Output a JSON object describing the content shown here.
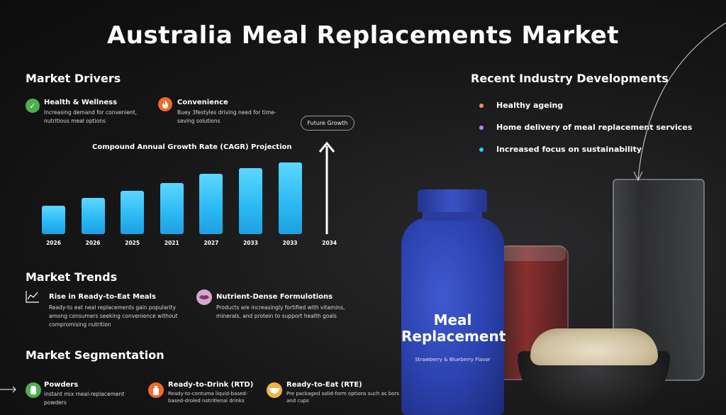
{
  "title": "Australia Meal Replacements Market",
  "drivers": {
    "heading": "Market Drivers",
    "items": [
      {
        "title": "Health & Wellness",
        "desc": "Increasing demand for convenient, nutritious meal options",
        "icon": "checkmark-icon",
        "color": "#4caf50"
      },
      {
        "title": "Convenience",
        "desc": "Buey 3festyles driving need for time-saving solutions",
        "icon": "flame-icon",
        "color": "#f06a2a"
      }
    ]
  },
  "chart": {
    "pill": "Future Growth",
    "title": "Compound Annual Growth Rate (CAGR) Projection"
  },
  "chart_data": {
    "type": "bar",
    "title": "Compound Annual Growth Rate (CAGR) Projection",
    "categories": [
      "2026",
      "2026",
      "2025",
      "2021",
      "2027",
      "2033",
      "2033",
      "2034"
    ],
    "values": [
      40,
      51,
      61,
      72,
      85,
      93,
      101,
      null
    ],
    "ylim": [
      0,
      110
    ],
    "annotation": "Future Growth"
  },
  "developments": {
    "heading": "Recent Industry Developments",
    "items": [
      {
        "text": "Healthy ageing",
        "color": "#ff8c4a"
      },
      {
        "text": "Home delivery of meal replacement services",
        "color": "#c77dff"
      },
      {
        "text": "Increased focus on sustainability",
        "color": "#22d3ee"
      }
    ]
  },
  "trends": {
    "heading": "Market Trends",
    "items": [
      {
        "title": "Rise in Ready-to-Eat Meals",
        "desc": "Ready-to eat neal replacements gain popularity among consumers seeking convenience without compromising nutrition",
        "icon": "trend-line-icon",
        "color": "#ffffff"
      },
      {
        "title": "Nutrient-Dense Formulotions",
        "desc": "Products are increasingly fortified with vitamins, minerals, and protein to support health goals",
        "icon": "lips-icon",
        "color": "#d7a6cf"
      }
    ]
  },
  "segmentation": {
    "heading": "Market Segmentation",
    "items": [
      {
        "title": "Powders",
        "desc": "instant mix meal-replacement powders",
        "icon": "jar-icon",
        "color": "#4caf50"
      },
      {
        "title": "Ready-to-Drink (RTD)",
        "desc": "Ready-to-contuma liquid-based-based-droled notritlenal drinks",
        "icon": "bottle-icon",
        "color": "#f06a2a"
      },
      {
        "title": "Ready-to-Eat (RTE)",
        "desc": "Pre packaged solid-form options such as bors and cups",
        "icon": "bowl-icon",
        "color": "#f2b441"
      }
    ]
  },
  "product": {
    "label": "Meal Replacement",
    "flavor": "Strawberry & Blueberry Flavor"
  }
}
